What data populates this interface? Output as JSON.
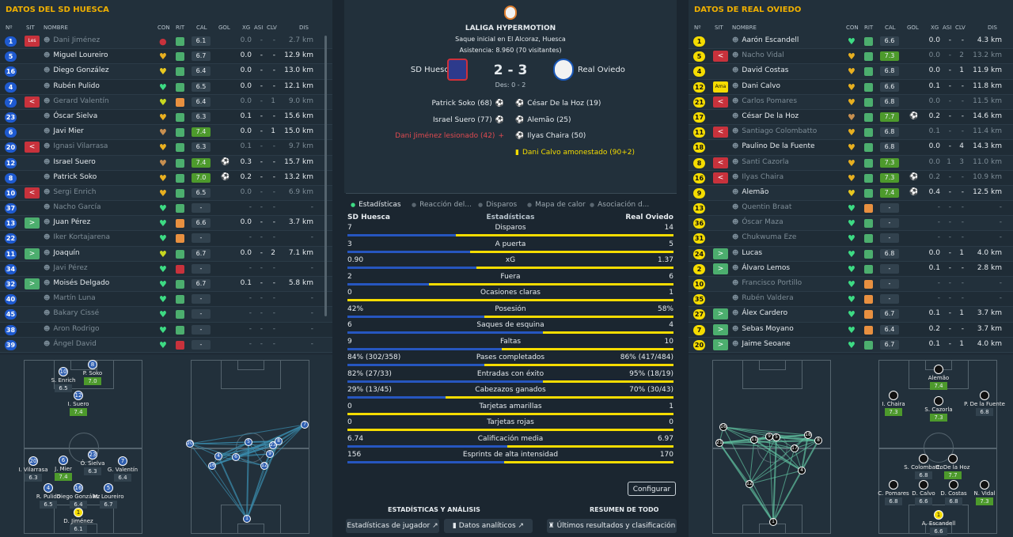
{
  "left": {
    "title": "DATOS DEL SD HUESCA",
    "headers": [
      "Nº",
      "SIT",
      "NOMBRE",
      "CON",
      "RIT",
      "CAL",
      "GOL",
      "XG",
      "ASI",
      "CLV",
      "DIS"
    ],
    "players": [
      {
        "n": "1",
        "sit": "Les",
        "sitc": "les",
        "name": "Dani Jiménez",
        "dim": true,
        "con": "●",
        "conc": "#c8323c",
        "rit": "#4cae6e",
        "cal": "6.1",
        "g": false,
        "gol": "",
        "xg": "0.0",
        "asi": "-",
        "clv": "-",
        "dis": "2.7 km"
      },
      {
        "n": "5",
        "sit": "",
        "name": "Miguel Loureiro",
        "con": "♥",
        "conc": "#e8b020",
        "rit": "#4cae6e",
        "cal": "6.7",
        "gol": "",
        "xg": "0.0",
        "asi": "-",
        "clv": "-",
        "dis": "12.9 km"
      },
      {
        "n": "16",
        "sit": "",
        "name": "Diego González",
        "con": "♥",
        "conc": "#e8c820",
        "rit": "#4cae6e",
        "cal": "6.4",
        "gol": "",
        "xg": "0.0",
        "asi": "-",
        "clv": "-",
        "dis": "13.0 km"
      },
      {
        "n": "4",
        "sit": "",
        "name": "Rubén Pulido",
        "con": "♥",
        "conc": "#3ddc84",
        "rit": "#4cae6e",
        "cal": "6.5",
        "gol": "",
        "xg": "0.0",
        "asi": "-",
        "clv": "-",
        "dis": "12.1 km"
      },
      {
        "n": "7",
        "sit": "<",
        "sitc": "red",
        "name": "Gerard Valentín",
        "dim": true,
        "con": "♥",
        "conc": "#c8d820",
        "rit": "#e89040",
        "cal": "6.4",
        "gol": "",
        "xg": "0.0",
        "asi": "-",
        "clv": "1",
        "dis": "9.0 km"
      },
      {
        "n": "23",
        "sit": "",
        "name": "Óscar Sielva",
        "con": "♥",
        "conc": "#e8b020",
        "rit": "#4cae6e",
        "cal": "6.3",
        "gol": "",
        "xg": "0.1",
        "asi": "-",
        "clv": "-",
        "dis": "15.6 km"
      },
      {
        "n": "6",
        "sit": "",
        "name": "Javi Mier",
        "con": "♥",
        "conc": "#c89050",
        "rit": "#4cae6e",
        "cal": "7.4",
        "g": true,
        "gol": "",
        "xg": "0.0",
        "asi": "-",
        "clv": "1",
        "dis": "15.0 km"
      },
      {
        "n": "20",
        "sit": "<",
        "sitc": "red",
        "name": "Ignasi Vilarrasa",
        "dim": true,
        "con": "♥",
        "conc": "#e8b020",
        "rit": "#4cae6e",
        "cal": "6.3",
        "gol": "",
        "xg": "0.1",
        "asi": "-",
        "clv": "-",
        "dis": "9.7 km"
      },
      {
        "n": "12",
        "sit": "",
        "name": "Israel Suero",
        "con": "♥",
        "conc": "#c89050",
        "rit": "#4cae6e",
        "cal": "7.4",
        "g": true,
        "gol": "⚽",
        "xg": "0.3",
        "asi": "-",
        "clv": "-",
        "dis": "15.7 km"
      },
      {
        "n": "8",
        "sit": "",
        "name": "Patrick Soko",
        "con": "♥",
        "conc": "#e8b020",
        "rit": "#4cae6e",
        "cal": "7.0",
        "g": true,
        "gol": "⚽",
        "xg": "0.2",
        "asi": "-",
        "clv": "-",
        "dis": "13.2 km"
      },
      {
        "n": "10",
        "sit": "<",
        "sitc": "red",
        "name": "Sergi Enrich",
        "dim": true,
        "con": "♥",
        "conc": "#e8b020",
        "rit": "#4cae6e",
        "cal": "6.5",
        "gol": "",
        "xg": "0.0",
        "asi": "-",
        "clv": "-",
        "dis": "6.9 km"
      },
      {
        "n": "37",
        "sit": "",
        "name": "Nacho García",
        "dim": true,
        "con": "♥",
        "conc": "#3ddc84",
        "rit": "#4cae6e",
        "cal": "-",
        "gol": "",
        "xg": "-",
        "asi": "-",
        "clv": "-",
        "dis": "-"
      },
      {
        "n": "13",
        "sit": ">",
        "sitc": "green",
        "name": "Juan Pérez",
        "con": "♥",
        "conc": "#3ddc84",
        "rit": "#e89040",
        "cal": "6.6",
        "gol": "",
        "xg": "0.0",
        "asi": "-",
        "clv": "-",
        "dis": "3.7 km"
      },
      {
        "n": "22",
        "sit": "",
        "name": "Iker Kortajarena",
        "dim": true,
        "con": "♥",
        "conc": "#3ddc84",
        "rit": "#e89040",
        "cal": "-",
        "gol": "",
        "xg": "-",
        "asi": "-",
        "clv": "-",
        "dis": "-"
      },
      {
        "n": "11",
        "sit": ">",
        "sitc": "green",
        "name": "Joaquín",
        "con": "♥",
        "conc": "#c8d820",
        "rit": "#4cae6e",
        "cal": "6.7",
        "gol": "",
        "xg": "0.0",
        "asi": "-",
        "clv": "2",
        "dis": "7.1 km"
      },
      {
        "n": "34",
        "sit": "",
        "name": "Javi Pérez",
        "dim": true,
        "con": "♥",
        "conc": "#3ddc84",
        "rit": "#c8323c",
        "cal": "-",
        "gol": "",
        "xg": "-",
        "asi": "-",
        "clv": "-",
        "dis": "-"
      },
      {
        "n": "32",
        "sit": ">",
        "sitc": "green",
        "name": "Moisés Delgado",
        "con": "♥",
        "conc": "#3ddc84",
        "rit": "#4cae6e",
        "cal": "6.7",
        "gol": "",
        "xg": "0.1",
        "asi": "-",
        "clv": "-",
        "dis": "5.8 km"
      },
      {
        "n": "40",
        "sit": "",
        "name": "Martín Luna",
        "dim": true,
        "con": "♥",
        "conc": "#3ddc84",
        "rit": "#4cae6e",
        "cal": "-",
        "gol": "",
        "xg": "-",
        "asi": "-",
        "clv": "-",
        "dis": "-"
      },
      {
        "n": "45",
        "sit": "",
        "name": "Bakary Cissé",
        "dim": true,
        "con": "♥",
        "conc": "#3ddc84",
        "rit": "#4cae6e",
        "cal": "-",
        "gol": "",
        "xg": "-",
        "asi": "-",
        "clv": "-",
        "dis": "-"
      },
      {
        "n": "38",
        "sit": "",
        "name": "Aron Rodrigo",
        "dim": true,
        "con": "♥",
        "conc": "#3ddc84",
        "rit": "#4cae6e",
        "cal": "-",
        "gol": "",
        "xg": "-",
        "asi": "-",
        "clv": "-",
        "dis": "-"
      },
      {
        "n": "39",
        "sit": "",
        "name": "Ángel David",
        "dim": true,
        "con": "♥",
        "conc": "#3ddc84",
        "rit": "#c8323c",
        "cal": "-",
        "gol": "",
        "xg": "-",
        "asi": "-",
        "clv": "-",
        "dis": "-"
      }
    ]
  },
  "right": {
    "title": "DATOS DE REAL OVIEDO",
    "headers": [
      "Nº",
      "SIT",
      "NOMBRE",
      "CON",
      "RIT",
      "CAL",
      "GOL",
      "XG",
      "ASI",
      "CLV",
      "DIS"
    ],
    "players": [
      {
        "n": "1",
        "sit": "",
        "name": "Aarón Escandell",
        "con": "♥",
        "conc": "#3ddc84",
        "rit": "#4cae6e",
        "cal": "6.6",
        "gol": "",
        "xg": "0.0",
        "asi": "-",
        "clv": "-",
        "dis": "4.3 km"
      },
      {
        "n": "5",
        "sit": "<",
        "sitc": "red",
        "name": "Nacho Vidal",
        "dim": true,
        "con": "♥",
        "conc": "#e8b020",
        "rit": "#4cae6e",
        "cal": "7.3",
        "g": true,
        "gol": "",
        "xg": "0.0",
        "asi": "-",
        "clv": "2",
        "dis": "13.2 km"
      },
      {
        "n": "4",
        "sit": "",
        "name": "David Costas",
        "con": "♥",
        "conc": "#e8b020",
        "rit": "#4cae6e",
        "cal": "6.8",
        "gol": "",
        "xg": "0.0",
        "asi": "-",
        "clv": "1",
        "dis": "11.9 km"
      },
      {
        "n": "12",
        "sit": "Ama",
        "sitc": "ama",
        "name": "Dani Calvo",
        "con": "♥",
        "conc": "#e8b020",
        "rit": "#4cae6e",
        "cal": "6.6",
        "gol": "",
        "xg": "0.1",
        "asi": "-",
        "clv": "-",
        "dis": "11.8 km"
      },
      {
        "n": "21",
        "sit": "<",
        "sitc": "red",
        "name": "Carlos Pomares",
        "dim": true,
        "con": "♥",
        "conc": "#e8b020",
        "rit": "#4cae6e",
        "cal": "6.8",
        "gol": "",
        "xg": "0.0",
        "asi": "-",
        "clv": "-",
        "dis": "11.5 km"
      },
      {
        "n": "17",
        "sit": "",
        "name": "César De la Hoz",
        "con": "♥",
        "conc": "#c89050",
        "rit": "#4cae6e",
        "cal": "7.7",
        "g": true,
        "gol": "⚽",
        "xg": "0.2",
        "asi": "-",
        "clv": "-",
        "dis": "14.6 km"
      },
      {
        "n": "11",
        "sit": "<",
        "sitc": "red",
        "name": "Santiago Colombatto",
        "dim": true,
        "con": "♥",
        "conc": "#e8b020",
        "rit": "#4cae6e",
        "cal": "6.8",
        "gol": "",
        "xg": "0.1",
        "asi": "-",
        "clv": "-",
        "dis": "11.4 km"
      },
      {
        "n": "18",
        "sit": "",
        "name": "Paulino De la Fuente",
        "con": "♥",
        "conc": "#e8b020",
        "rit": "#4cae6e",
        "cal": "6.8",
        "gol": "",
        "xg": "0.0",
        "asi": "-",
        "clv": "4",
        "dis": "14.3 km"
      },
      {
        "n": "8",
        "sit": "<",
        "sitc": "red",
        "name": "Santi Cazorla",
        "dim": true,
        "con": "♥",
        "conc": "#e8b020",
        "rit": "#4cae6e",
        "cal": "7.3",
        "g": true,
        "gol": "",
        "xg": "0.0",
        "asi": "1",
        "clv": "3",
        "dis": "11.0 km"
      },
      {
        "n": "16",
        "sit": "<",
        "sitc": "red",
        "name": "Ilyas Chaira",
        "dim": true,
        "con": "♥",
        "conc": "#e8b020",
        "rit": "#4cae6e",
        "cal": "7.3",
        "g": true,
        "gol": "⚽",
        "xg": "0.2",
        "asi": "-",
        "clv": "-",
        "dis": "10.9 km"
      },
      {
        "n": "9",
        "sit": "",
        "name": "Alemão",
        "con": "♥",
        "conc": "#e8c820",
        "rit": "#4cae6e",
        "cal": "7.4",
        "g": true,
        "gol": "⚽",
        "xg": "0.4",
        "asi": "-",
        "clv": "-",
        "dis": "12.5 km"
      },
      {
        "n": "13",
        "sit": "",
        "name": "Quentin Braat",
        "dim": true,
        "con": "♥",
        "conc": "#3ddc84",
        "rit": "#e89040",
        "cal": "-",
        "gol": "",
        "xg": "-",
        "asi": "-",
        "clv": "-",
        "dis": "-"
      },
      {
        "n": "36",
        "sit": "",
        "name": "Óscar Maza",
        "dim": true,
        "con": "♥",
        "conc": "#3ddc84",
        "rit": "#4cae6e",
        "cal": "-",
        "gol": "",
        "xg": "-",
        "asi": "-",
        "clv": "-",
        "dis": "-"
      },
      {
        "n": "31",
        "sit": "",
        "name": "Chukwuma Eze",
        "dim": true,
        "con": "♥",
        "conc": "#3ddc84",
        "rit": "#4cae6e",
        "cal": "-",
        "gol": "",
        "xg": "-",
        "asi": "-",
        "clv": "-",
        "dis": "-"
      },
      {
        "n": "24",
        "sit": ">",
        "sitc": "green",
        "name": "Lucas",
        "con": "♥",
        "conc": "#3ddc84",
        "rit": "#4cae6e",
        "cal": "6.8",
        "gol": "",
        "xg": "0.0",
        "asi": "-",
        "clv": "1",
        "dis": "4.0 km"
      },
      {
        "n": "2",
        "sit": ">",
        "sitc": "green",
        "name": "Álvaro Lemos",
        "con": "♥",
        "conc": "#3ddc84",
        "rit": "#4cae6e",
        "cal": "-",
        "gol": "",
        "xg": "0.1",
        "asi": "-",
        "clv": "-",
        "dis": "2.8 km"
      },
      {
        "n": "10",
        "sit": "",
        "name": "Francisco Portillo",
        "dim": true,
        "con": "♥",
        "conc": "#3ddc84",
        "rit": "#e89040",
        "cal": "-",
        "gol": "",
        "xg": "-",
        "asi": "-",
        "clv": "-",
        "dis": "-"
      },
      {
        "n": "35",
        "sit": "",
        "name": "Rubén Valdera",
        "dim": true,
        "con": "♥",
        "conc": "#3ddc84",
        "rit": "#e89040",
        "cal": "-",
        "gol": "",
        "xg": "-",
        "asi": "-",
        "clv": "-",
        "dis": "-"
      },
      {
        "n": "27",
        "sit": ">",
        "sitc": "green",
        "name": "Álex Cardero",
        "con": "♥",
        "conc": "#3ddc84",
        "rit": "#e89040",
        "cal": "6.7",
        "gol": "",
        "xg": "0.1",
        "asi": "-",
        "clv": "1",
        "dis": "3.7 km"
      },
      {
        "n": "7",
        "sit": ">",
        "sitc": "green",
        "name": "Sebas Moyano",
        "con": "♥",
        "conc": "#3ddc84",
        "rit": "#e89040",
        "cal": "6.4",
        "gol": "",
        "xg": "0.2",
        "asi": "-",
        "clv": "-",
        "dis": "3.7 km"
      },
      {
        "n": "20",
        "sit": ">",
        "sitc": "green",
        "name": "Jaime Seoane",
        "con": "♥",
        "conc": "#3ddc84",
        "rit": "#4cae6e",
        "cal": "6.7",
        "gol": "",
        "xg": "0.1",
        "asi": "-",
        "clv": "1",
        "dis": "4.0 km"
      }
    ]
  },
  "match": {
    "league": "LALIGA HYPERMOTION",
    "kickoff": "Saque inicial en El Alcoraz, Huesca",
    "attendance": "Asistencia: 8.960 (70 visitantes)",
    "home": "SD Huesca",
    "away": "Real Oviedo",
    "score": "2 - 3",
    "des": "Des: 0 - 2",
    "home_events": [
      {
        "t": "Patrick Soko (68)",
        "icon": "⚽",
        "red": false
      },
      {
        "t": "Israel Suero (77)",
        "icon": "⚽",
        "red": false
      },
      {
        "t": "Dani Jiménez lesionado (42)",
        "icon": "+",
        "red": true
      }
    ],
    "away_events": [
      {
        "t": "César De la Hoz (19)",
        "icon": "⚽",
        "card": false
      },
      {
        "t": "Alemão (25)",
        "icon": "⚽",
        "card": false
      },
      {
        "t": "Ilyas Chaira (50)",
        "icon": "⚽",
        "card": false
      },
      {
        "t": "Dani Calvo amonestado (90+2)",
        "icon": "▮",
        "card": true
      }
    ]
  },
  "tabs": [
    "Estadísticas",
    "Reacción del...",
    "Disparos",
    "Mapa de calor",
    "Asociación d..."
  ],
  "stats_header": {
    "home": "SD Huesca",
    "mid": "Estadísticas",
    "away": "Real Oviedo"
  },
  "stats": [
    {
      "label": "Disparos",
      "h": "7",
      "a": "14",
      "f": 0.333
    },
    {
      "label": "A puerta",
      "h": "3",
      "a": "5",
      "f": 0.375
    },
    {
      "label": "xG",
      "h": "0.90",
      "a": "1.37",
      "f": 0.396
    },
    {
      "label": "Fuera",
      "h": "2",
      "a": "6",
      "f": 0.25
    },
    {
      "label": "Ocasiones claras",
      "h": "0",
      "a": "1",
      "f": 0.0
    },
    {
      "label": "Posesión",
      "h": "42%",
      "a": "58%",
      "f": 0.42
    },
    {
      "label": "Saques de esquina",
      "h": "6",
      "a": "4",
      "f": 0.6
    },
    {
      "label": "Faltas",
      "h": "9",
      "a": "10",
      "f": 0.474
    },
    {
      "label": "Pases completados",
      "h": "84% (302/358)",
      "a": "86% (417/484)",
      "f": 0.42
    },
    {
      "label": "Entradas con éxito",
      "h": "82% (27/33)",
      "a": "95% (18/19)",
      "f": 0.6
    },
    {
      "label": "Cabezazos ganados",
      "h": "29% (13/45)",
      "a": "70% (30/43)",
      "f": 0.3
    },
    {
      "label": "Tarjetas amarillas",
      "h": "0",
      "a": "1",
      "f": 0.0
    },
    {
      "label": "Tarjetas rojas",
      "h": "0",
      "a": "0",
      "f": 0.0
    },
    {
      "label": "Calificación media",
      "h": "6.74",
      "a": "6.97",
      "f": 0.49
    },
    {
      "label": "Esprints de alta intensidad",
      "h": "156",
      "a": "170",
      "f": 0.48
    }
  ],
  "buttons": {
    "configurar": "Configurar",
    "sec1": "ESTADÍSTICAS Y ANÁLISIS",
    "sec2": "RESUMEN DE TODO",
    "b1": "Estadísticas de jugador",
    "b2": "Datos analíticos",
    "b3": "Últimos resultados y clasificación"
  },
  "colors": {
    "home": "#2656c0",
    "away": "#f5dc00",
    "accent": "#f0b000"
  },
  "home_form": [
    {
      "n": "10",
      "lbl": "S. Enrich",
      "r": "6.5"
    },
    {
      "n": "8",
      "lbl": "P. Soko",
      "r": "7.0"
    },
    {
      "n": "12",
      "lbl": "I. Suero",
      "r": "7.4"
    },
    {
      "n": "20",
      "lbl": "I. Vilarrasa",
      "r": "6.3"
    },
    {
      "n": "6",
      "lbl": "J. Mier",
      "r": "7.4"
    },
    {
      "n": "23",
      "lbl": "Ó. Sielva",
      "r": "6.3"
    },
    {
      "n": "7",
      "lbl": "G. Valentín",
      "r": "6.4"
    },
    {
      "n": "4",
      "lbl": "R. Pulido",
      "r": "6.5"
    },
    {
      "n": "16",
      "lbl": "Diego González",
      "r": "6.4"
    },
    {
      "n": "5",
      "lbl": "M. Loureiro",
      "r": "6.7"
    },
    {
      "n": "1",
      "lbl": "D. Jiménez",
      "r": "6.1"
    }
  ],
  "away_form": [
    {
      "n": "",
      "lbl": "Alemão",
      "r": "7.4"
    },
    {
      "n": "",
      "lbl": "I. Chaira",
      "r": "7.3"
    },
    {
      "n": "",
      "lbl": "S. Cazorla",
      "r": "7.3"
    },
    {
      "n": "",
      "lbl": "P. De la Fuente",
      "r": "6.8"
    },
    {
      "n": "",
      "lbl": "S. Colombatto",
      "r": "6.8"
    },
    {
      "n": "",
      "lbl": "C. De la Hoz",
      "r": "7.7"
    },
    {
      "n": "",
      "lbl": "C. Pomares",
      "r": "6.8"
    },
    {
      "n": "",
      "lbl": "D. Calvo",
      "r": "6.6"
    },
    {
      "n": "",
      "lbl": "D. Costas",
      "r": "6.8"
    },
    {
      "n": "",
      "lbl": "N. Vidal",
      "r": "7.3"
    },
    {
      "n": "1",
      "lbl": "A. Escandell",
      "r": "6.6"
    }
  ],
  "home_passmap_nums": [
    "20",
    "4",
    "6",
    "16",
    "5",
    "23",
    "9",
    "8",
    "7",
    "12",
    "1"
  ],
  "away_passmap_nums": [
    "16",
    "21",
    "11",
    "9",
    "8",
    "18",
    "17",
    "5",
    "4",
    "12",
    "1"
  ]
}
